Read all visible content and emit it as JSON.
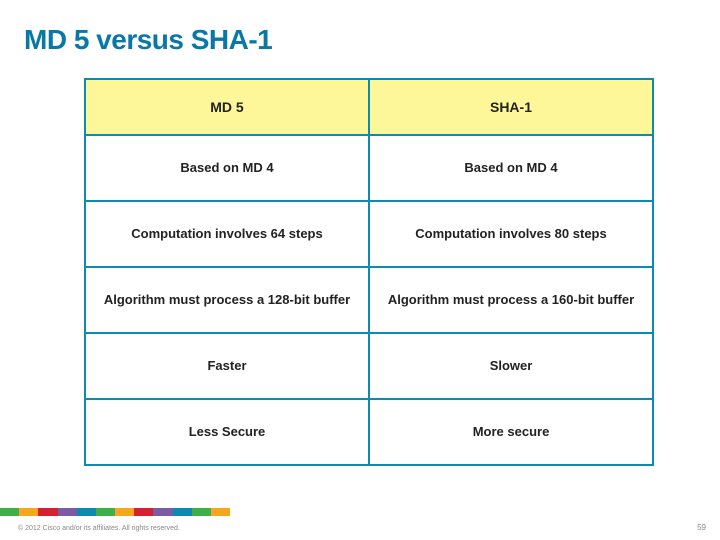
{
  "title": "MD 5 versus SHA-1",
  "table": {
    "headers": [
      "MD 5",
      "SHA-1"
    ],
    "rows": [
      [
        "Based on MD 4",
        "Based on MD 4"
      ],
      [
        "Computation involves 64 steps",
        "Computation involves 80 steps"
      ],
      [
        "Algorithm must process a 128-bit buffer",
        "Algorithm must process a 160-bit buffer"
      ],
      [
        "Faster",
        "Slower"
      ],
      [
        "Less Secure",
        "More secure"
      ]
    ],
    "header_bg": "#fef79a",
    "border_color": "#0d8ab0",
    "title_color": "#0878a6",
    "text_color": "#222222",
    "header_fontsize": 14,
    "cell_fontsize": 13
  },
  "accent_colors": [
    "#3fae49",
    "#f6a81c",
    "#d4202f",
    "#7b5aa6",
    "#0d8ab0",
    "#3fae49",
    "#f6a81c",
    "#d4202f",
    "#7b5aa6",
    "#0d8ab0",
    "#3fae49",
    "#f6a81c"
  ],
  "footer": {
    "copyright": "© 2012 Cisco and/or its affiliates. All rights reserved.",
    "page": "59"
  }
}
